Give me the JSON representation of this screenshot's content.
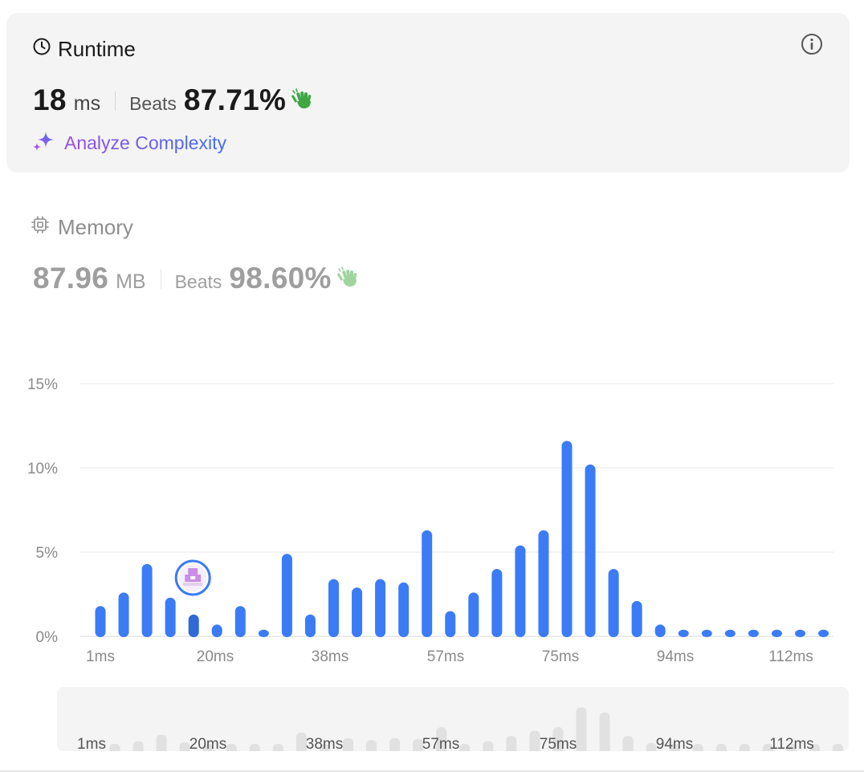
{
  "runtime": {
    "title": "Runtime",
    "value": "18",
    "unit": "ms",
    "beats_label": "Beats",
    "beats_value": "87.71%",
    "analyze_label": "Analyze Complexity"
  },
  "memory": {
    "title": "Memory",
    "value": "87.96",
    "unit": "MB",
    "beats_label": "Beats",
    "beats_value": "98.60%"
  },
  "colors": {
    "bar": "#3b7bf6",
    "bar_active": "#2f6ad6",
    "clap_active": "#3fa644",
    "clap_muted": "#9fd49f",
    "nav_bar": "#e1e1e1"
  },
  "chart_data": {
    "type": "bar",
    "ylim": [
      0,
      15
    ],
    "y_ticks": [
      "0%",
      "5%",
      "10%",
      "15%"
    ],
    "x_tick_labels": [
      "1ms",
      "20ms",
      "38ms",
      "57ms",
      "75ms",
      "94ms",
      "112ms"
    ],
    "values": [
      1.8,
      2.6,
      4.3,
      2.3,
      1.3,
      0.7,
      1.8,
      0.4,
      4.9,
      1.3,
      3.4,
      2.9,
      3.4,
      3.2,
      6.3,
      1.5,
      2.6,
      4.0,
      5.4,
      6.3,
      11.6,
      10.2,
      4.0,
      2.1,
      0.7,
      0.4,
      0.4,
      0.4,
      0.4,
      0.4,
      0.4,
      0.4
    ],
    "active_index": 4,
    "marker_icon": "user-avatar-icon"
  },
  "navigator": {
    "x_tick_labels": [
      "1ms",
      "20ms",
      "38ms",
      "57ms",
      "75ms",
      "94ms",
      "112ms"
    ]
  }
}
